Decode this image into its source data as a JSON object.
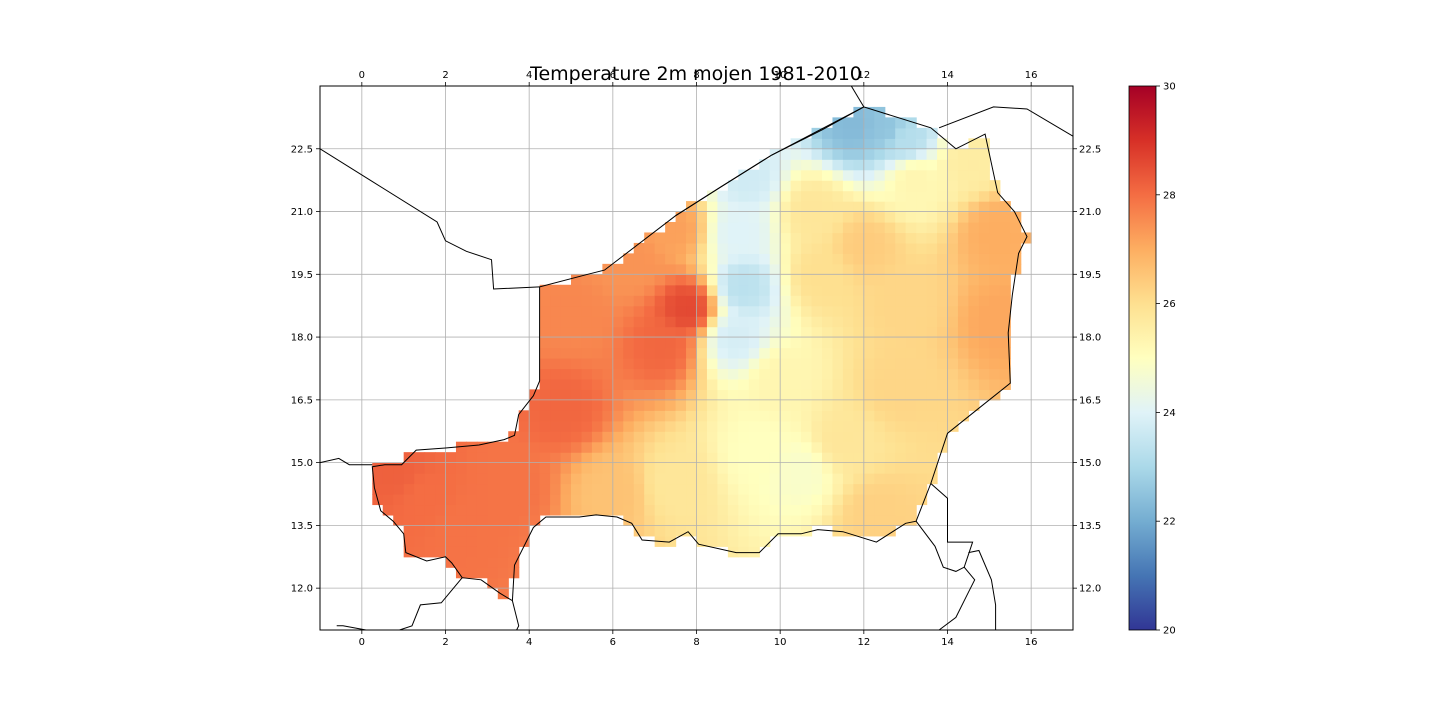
{
  "figure": {
    "title": "Temperature 2m mojen 1981-2010"
  },
  "colors": {
    "border": "#000000",
    "grid": "#b0b0b0",
    "background": "#ffffff"
  },
  "colormap": {
    "name": "RdYlBu_r",
    "vmin": 20,
    "vmax": 30,
    "stops": [
      "#313695",
      "#4575b4",
      "#74add1",
      "#abd9e9",
      "#e0f3f8",
      "#ffffbf",
      "#fee090",
      "#fdae61",
      "#f46d43",
      "#d73027",
      "#a50026"
    ]
  },
  "colorbar": {
    "ticks": [
      "20",
      "22",
      "24",
      "26",
      "28",
      "30"
    ],
    "values": [
      20,
      22,
      24,
      26,
      28,
      30
    ]
  },
  "chart_data": {
    "type": "heatmap",
    "title": "Temperature 2m mojen 1981-2010",
    "xlabel": "",
    "ylabel": "",
    "xlim": [
      -1,
      17
    ],
    "ylim": [
      11,
      24
    ],
    "grid": true,
    "top_x_ticks": [
      "0",
      "2",
      "4",
      "6",
      "8",
      "10",
      "12",
      "14",
      "16"
    ],
    "top_x_values": [
      0,
      2,
      4,
      6,
      8,
      10,
      12,
      14,
      16
    ],
    "bottom_x_ticks": [
      "0",
      "2",
      "4",
      "6",
      "8",
      "10",
      "12",
      "14",
      "16"
    ],
    "bottom_x_values": [
      0,
      2,
      4,
      6,
      8,
      10,
      12,
      14,
      16
    ],
    "left_y_ticks": [
      "12.0",
      "13.5",
      "15.0",
      "16.5",
      "18.0",
      "19.5",
      "21.0",
      "22.5"
    ],
    "right_y_ticks": [
      "12.0",
      "13.5",
      "15.0",
      "16.5",
      "18.0",
      "19.5",
      "21.0",
      "22.5"
    ],
    "y_values": [
      12.0,
      13.5,
      15.0,
      16.5,
      18.0,
      19.5,
      21.0,
      22.5
    ],
    "grid_resolution_deg": 0.25,
    "niger_outline": [
      [
        0.25,
        14.9
      ],
      [
        0.55,
        14.95
      ],
      [
        0.95,
        14.95
      ],
      [
        1.3,
        15.3
      ],
      [
        2.0,
        15.35
      ],
      [
        2.8,
        15.42
      ],
      [
        3.4,
        15.55
      ],
      [
        3.65,
        15.65
      ],
      [
        3.75,
        16.15
      ],
      [
        4.1,
        16.6
      ],
      [
        4.25,
        16.95
      ],
      [
        4.25,
        19.2
      ],
      [
        5.4,
        19.5
      ],
      [
        5.8,
        19.6
      ],
      [
        7.5,
        20.9
      ],
      [
        8.6,
        21.6
      ],
      [
        9.8,
        22.35
      ],
      [
        12.0,
        23.5
      ],
      [
        13.6,
        23.0
      ],
      [
        14.2,
        22.5
      ],
      [
        14.9,
        22.85
      ],
      [
        15.2,
        21.45
      ],
      [
        15.6,
        21.0
      ],
      [
        15.9,
        20.4
      ],
      [
        15.7,
        20.0
      ],
      [
        15.55,
        19.0
      ],
      [
        15.45,
        18.1
      ],
      [
        15.5,
        16.9
      ],
      [
        14.75,
        16.3
      ],
      [
        14.0,
        15.7
      ],
      [
        13.6,
        14.5
      ],
      [
        13.25,
        13.6
      ],
      [
        13.0,
        13.55
      ],
      [
        12.3,
        13.1
      ],
      [
        11.5,
        13.35
      ],
      [
        10.9,
        13.4
      ],
      [
        10.5,
        13.3
      ],
      [
        9.95,
        13.3
      ],
      [
        9.5,
        12.85
      ],
      [
        8.95,
        12.85
      ],
      [
        8.05,
        13.05
      ],
      [
        7.8,
        13.35
      ],
      [
        7.35,
        13.1
      ],
      [
        6.7,
        13.15
      ],
      [
        6.45,
        13.55
      ],
      [
        6.1,
        13.7
      ],
      [
        5.6,
        13.75
      ],
      [
        5.2,
        13.7
      ],
      [
        4.4,
        13.7
      ],
      [
        4.1,
        13.45
      ],
      [
        3.65,
        12.55
      ],
      [
        3.6,
        11.7
      ],
      [
        3.3,
        11.88
      ],
      [
        2.85,
        12.2
      ],
      [
        2.4,
        12.25
      ],
      [
        2.15,
        12.6
      ],
      [
        2.0,
        12.75
      ],
      [
        1.55,
        12.65
      ],
      [
        1.05,
        12.85
      ],
      [
        1.0,
        13.3
      ],
      [
        0.75,
        13.6
      ],
      [
        0.45,
        13.85
      ],
      [
        0.3,
        14.4
      ]
    ],
    "neighbor_borders": [
      [
        [
          -1,
          22.5
        ],
        [
          0.2,
          21.75
        ],
        [
          1.8,
          20.75
        ],
        [
          2.0,
          20.3
        ],
        [
          2.5,
          20.05
        ],
        [
          3.1,
          19.85
        ],
        [
          3.15,
          19.15
        ],
        [
          4.25,
          19.2
        ]
      ],
      [
        [
          7.5,
          20.9
        ],
        [
          8.6,
          21.6
        ],
        [
          9.8,
          22.35
        ],
        [
          11.0,
          22.95
        ],
        [
          12.0,
          23.5
        ]
      ],
      [
        [
          12.0,
          23.5
        ],
        [
          11.7,
          24.0
        ]
      ],
      [
        [
          13.8,
          23.0
        ],
        [
          15.1,
          23.5
        ],
        [
          15.9,
          23.45
        ],
        [
          17.0,
          22.8
        ]
      ],
      [
        [
          -1,
          15.0
        ],
        [
          -0.55,
          15.1
        ],
        [
          -0.3,
          14.95
        ],
        [
          0.25,
          14.95
        ]
      ],
      [
        [
          -0.6,
          11.1
        ],
        [
          -0.45,
          11.1
        ],
        [
          0.1,
          11.0
        ],
        [
          0.9,
          11.0
        ],
        [
          1.2,
          11.1
        ],
        [
          1.4,
          11.6
        ],
        [
          1.9,
          11.65
        ],
        [
          2.4,
          12.25
        ]
      ],
      [
        [
          3.6,
          11.7
        ],
        [
          3.75,
          11.1
        ],
        [
          3.7,
          11.0
        ]
      ],
      [
        [
          13.6,
          14.5
        ],
        [
          14.0,
          14.15
        ],
        [
          14.0,
          13.1
        ],
        [
          14.6,
          13.1
        ],
        [
          14.5,
          12.8
        ],
        [
          14.4,
          12.5
        ],
        [
          14.2,
          12.4
        ],
        [
          13.9,
          12.5
        ],
        [
          13.7,
          13.0
        ],
        [
          13.25,
          13.6
        ]
      ],
      [
        [
          14.4,
          12.5
        ],
        [
          14.65,
          12.2
        ],
        [
          14.5,
          11.9
        ],
        [
          14.2,
          11.3
        ],
        [
          13.8,
          11.0
        ]
      ],
      [
        [
          14.5,
          12.85
        ],
        [
          14.75,
          12.9
        ],
        [
          15.05,
          12.2
        ],
        [
          15.15,
          11.6
        ],
        [
          15.15,
          11.0
        ]
      ]
    ],
    "temperature_hotspots": [
      {
        "lon": 1.5,
        "lat": 14.2,
        "value": 28.0
      },
      {
        "lon": 0.8,
        "lat": 14.8,
        "value": 28.2
      },
      {
        "lon": 2.5,
        "lat": 13.5,
        "value": 27.9
      },
      {
        "lon": 3.5,
        "lat": 14.4,
        "value": 27.9
      },
      {
        "lon": 4.8,
        "lat": 16.3,
        "value": 28.1
      },
      {
        "lon": 5.0,
        "lat": 18.5,
        "value": 27.6
      },
      {
        "lon": 7.8,
        "lat": 18.7,
        "value": 28.6
      },
      {
        "lon": 7.2,
        "lat": 17.8,
        "value": 28.1
      },
      {
        "lon": 6.5,
        "lat": 19.8,
        "value": 27.4
      },
      {
        "lon": 7.5,
        "lat": 20.6,
        "value": 27.2
      },
      {
        "lon": 9.2,
        "lat": 21.8,
        "value": 23.7
      },
      {
        "lon": 9.0,
        "lat": 20.5,
        "value": 24.0
      },
      {
        "lon": 9.1,
        "lat": 19.2,
        "value": 23.3
      },
      {
        "lon": 8.9,
        "lat": 18.0,
        "value": 23.8
      },
      {
        "lon": 12.5,
        "lat": 23.0,
        "value": 22.5
      },
      {
        "lon": 11.8,
        "lat": 23.1,
        "value": 22.3
      },
      {
        "lon": 13.0,
        "lat": 22.7,
        "value": 23.2
      },
      {
        "lon": 13.2,
        "lat": 21.8,
        "value": 25.3
      },
      {
        "lon": 14.5,
        "lat": 22.2,
        "value": 25.6
      },
      {
        "lon": 15.2,
        "lat": 20.5,
        "value": 27.0
      },
      {
        "lon": 15.3,
        "lat": 18.4,
        "value": 27.1
      },
      {
        "lon": 13.0,
        "lat": 18.8,
        "value": 26.2
      },
      {
        "lon": 11.0,
        "lat": 19.5,
        "value": 26.0
      },
      {
        "lon": 10.0,
        "lat": 17.0,
        "value": 25.3
      },
      {
        "lon": 9.5,
        "lat": 15.3,
        "value": 25.0
      },
      {
        "lon": 10.5,
        "lat": 14.8,
        "value": 24.8
      },
      {
        "lon": 11.5,
        "lat": 15.5,
        "value": 25.8
      },
      {
        "lon": 12.3,
        "lat": 13.8,
        "value": 26.3
      },
      {
        "lon": 7.5,
        "lat": 14.5,
        "value": 25.8
      },
      {
        "lon": 6.0,
        "lat": 14.3,
        "value": 26.6
      },
      {
        "lon": 12.8,
        "lat": 16.8,
        "value": 26.2
      },
      {
        "lon": 10.8,
        "lat": 21.0,
        "value": 25.8
      },
      {
        "lon": 12.0,
        "lat": 20.2,
        "value": 26.4
      }
    ]
  }
}
